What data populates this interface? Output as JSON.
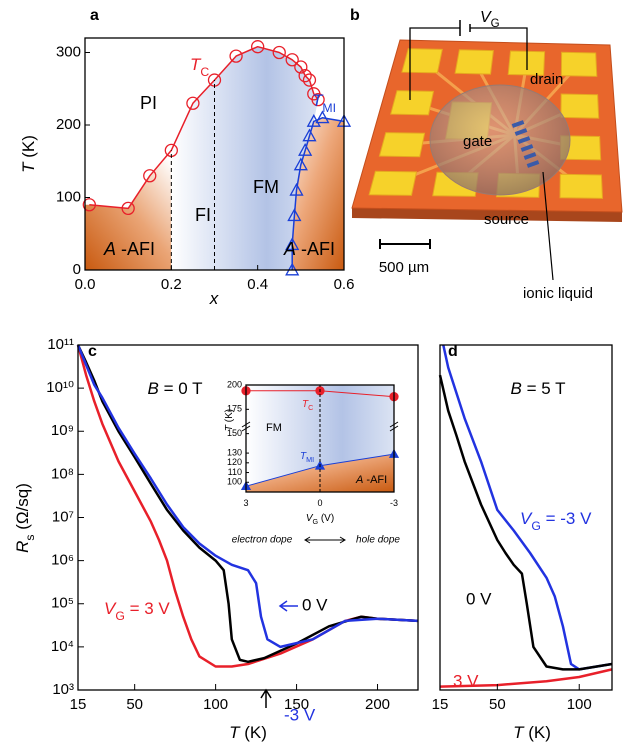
{
  "chart_data": [
    {
      "type": "scatter",
      "panel_label": "a",
      "x_label": {
        "main": "x"
      },
      "y_label": {
        "main": "T",
        "text": " (K)"
      },
      "xlim": [
        0,
        0.6
      ],
      "ylim": [
        0,
        320
      ],
      "xticks": [
        {
          "value": 0,
          "label": "0.0"
        },
        0.2,
        0.4,
        0.6
      ],
      "yticks": [
        0,
        100,
        200,
        300
      ],
      "phase_boundaries_x": [
        0.2,
        0.3
      ],
      "regions": [
        "PI",
        "FI",
        "FM",
        {
          "main": "A",
          "text": " -AFI"
        },
        {
          "main": "A",
          "text": " -AFI"
        }
      ],
      "series": [
        {
          "name": {
            "main": "T",
            "sub": "C"
          },
          "color": "#e8202a",
          "marker": "circle",
          "line": true,
          "x": [
            0.01,
            0.1,
            0.15,
            0.2,
            0.25,
            0.3,
            0.35,
            0.4,
            0.45,
            0.48,
            0.5,
            0.51,
            0.52,
            0.53,
            0.54
          ],
          "values": [
            90,
            85,
            130,
            165,
            230,
            262,
            295,
            308,
            300,
            290,
            280,
            268,
            262,
            243,
            235
          ]
        },
        {
          "name": {
            "main": "T",
            "sub": "MI"
          },
          "color": "#1a3fd6",
          "marker": "triangle",
          "line": true,
          "x": [
            0.48,
            0.48,
            0.485,
            0.49,
            0.5,
            0.51,
            0.52,
            0.53,
            0.55,
            0.6
          ],
          "values": [
            0,
            35,
            75,
            110,
            145,
            165,
            185,
            205,
            210,
            205
          ]
        }
      ]
    },
    {
      "type": "line",
      "panel_label": "c",
      "x_label": {
        "main": "T",
        "text": " (K)"
      },
      "y_label": {
        "main": "R",
        "sub": "s",
        "text": " (Ω/sq)"
      },
      "ylog": true,
      "xlim": [
        15,
        225
      ],
      "ylim": [
        1000,
        100000000000
      ],
      "xticks": [
        15,
        50,
        100,
        150,
        200
      ],
      "yticks": [
        {
          "value": 1000,
          "label": "10³"
        },
        {
          "value": 10000,
          "label": "10⁴"
        },
        {
          "value": 100000,
          "label": "10⁵"
        },
        {
          "value": 1000000,
          "label": "10⁶"
        },
        {
          "value": 10000000,
          "label": "10⁷"
        },
        {
          "value": 100000000,
          "label": "10⁸"
        },
        {
          "value": 1000000000,
          "label": "10⁹"
        },
        {
          "value": 10000000000,
          "label": "10¹⁰"
        },
        {
          "value": 100000000000,
          "label": "10¹¹"
        }
      ],
      "annotation": {
        "main": "B",
        "text": " = 0 T"
      },
      "series": [
        {
          "name": {
            "main": "V",
            "sub": "G",
            "text": " = 3 V"
          },
          "color": "#e8202a",
          "x": [
            15,
            20,
            25,
            30,
            40,
            50,
            60,
            65,
            70,
            75,
            80,
            85,
            90,
            100,
            110,
            120,
            140,
            160,
            180,
            190,
            200,
            225
          ],
          "values": [
            100000000000,
            20000000000,
            5000000000,
            1500000000,
            200000000,
            40000000,
            8000000,
            3000000,
            1000000,
            200000,
            50000,
            15000,
            6000,
            3500,
            3500,
            4000,
            7000,
            15000,
            40000,
            50000,
            45000,
            40000
          ]
        },
        {
          "name": "0 V",
          "color": "#000000",
          "x": [
            15,
            20,
            25,
            30,
            40,
            50,
            60,
            70,
            80,
            90,
            100,
            105,
            108,
            110,
            115,
            120,
            130,
            150,
            170,
            190,
            200,
            225
          ],
          "values": [
            100000000000,
            40000000000,
            15000000000,
            5000000000,
            1000000000,
            250000000,
            60000000,
            15000000,
            5000000,
            2000000,
            1000000,
            600000,
            100000,
            15000,
            5000,
            4500,
            5500,
            12000,
            30000,
            50000,
            45000,
            40000
          ]
        },
        {
          "name": "-3 V",
          "color": "#2233e0",
          "x": [
            15,
            25,
            30,
            40,
            50,
            60,
            70,
            80,
            90,
            100,
            110,
            120,
            125,
            128,
            132,
            140,
            160,
            180,
            200,
            225
          ],
          "values": [
            100000000000,
            12000000000,
            6000000000,
            1200000000,
            300000000,
            80000000,
            20000000,
            6000000,
            2500000,
            1300000,
            800000,
            600000,
            300000,
            50000,
            15000,
            10000,
            15000,
            40000,
            45000,
            40000
          ]
        }
      ]
    },
    {
      "type": "line",
      "x_label": {
        "main": "V",
        "sub": "G",
        "text": " (V)"
      },
      "y_label": {
        "main": "T",
        "text": " (K)"
      },
      "xlim": [
        3,
        -3
      ],
      "ylim": [
        90,
        200
      ],
      "xticks": [
        3,
        0,
        -3
      ],
      "yticks": [
        100,
        110,
        120,
        130,
        150,
        175,
        200
      ],
      "regions": [
        "FM",
        {
          "main": "A",
          "text": " -AFI"
        }
      ],
      "notes": [
        "electron dope",
        "hole dope"
      ],
      "series": [
        {
          "name": {
            "main": "T",
            "sub": "C"
          },
          "color": "#e8202a",
          "marker": "circle",
          "marker_filled": true,
          "x": [
            3,
            0,
            -3
          ],
          "values": [
            194,
            194,
            188
          ]
        },
        {
          "name": {
            "main": "T",
            "sub": "MI"
          },
          "color": "#1a3fd6",
          "marker": "triangle",
          "marker_filled": true,
          "x": [
            3,
            0,
            -3
          ],
          "values": [
            96,
            117,
            129
          ]
        }
      ]
    },
    {
      "type": "line",
      "panel_label": "d",
      "x_label": {
        "main": "T",
        "text": " (K)"
      },
      "ylog": true,
      "xlim": [
        15,
        120
      ],
      "ylim": [
        1000,
        100000000000
      ],
      "xticks": [
        15,
        50,
        100
      ],
      "annotation": {
        "main": "B",
        "text": " = 5 T"
      },
      "series": [
        {
          "name": {
            "main": "V",
            "sub": "G",
            "text": " = -3 V"
          },
          "color": "#2233e0",
          "x": [
            17,
            20,
            30,
            40,
            50,
            60,
            70,
            80,
            85,
            90,
            95,
            100,
            120
          ],
          "values": [
            100000000000,
            30000000000,
            2000000000,
            200000000,
            15000000,
            5000000,
            1500000,
            400000,
            150000,
            30000,
            4000,
            3000,
            4000
          ]
        },
        {
          "name": "0 V",
          "color": "#000000",
          "x": [
            15,
            20,
            25,
            30,
            40,
            50,
            55,
            60,
            65,
            68,
            72,
            80,
            90,
            100,
            120
          ],
          "values": [
            20000000000,
            3000000000,
            800000000,
            200000000,
            20000000,
            3000000,
            1500000,
            800000,
            500000,
            100000,
            10000,
            3500,
            3000,
            3000,
            4000
          ]
        },
        {
          "name": "3 V",
          "color": "#e8202a",
          "x": [
            15,
            50,
            80,
            100,
            120
          ],
          "values": [
            1200,
            1300,
            1600,
            2000,
            3000
          ]
        }
      ]
    }
  ],
  "diagram": {
    "panel_label": "b",
    "voltage": {
      "main": "V",
      "sub": "G"
    },
    "labels": {
      "drain": "drain",
      "gate": "gate",
      "source": "source",
      "scale_bar": "500 µm",
      "ionic_liquid": "ionic liquid"
    }
  }
}
